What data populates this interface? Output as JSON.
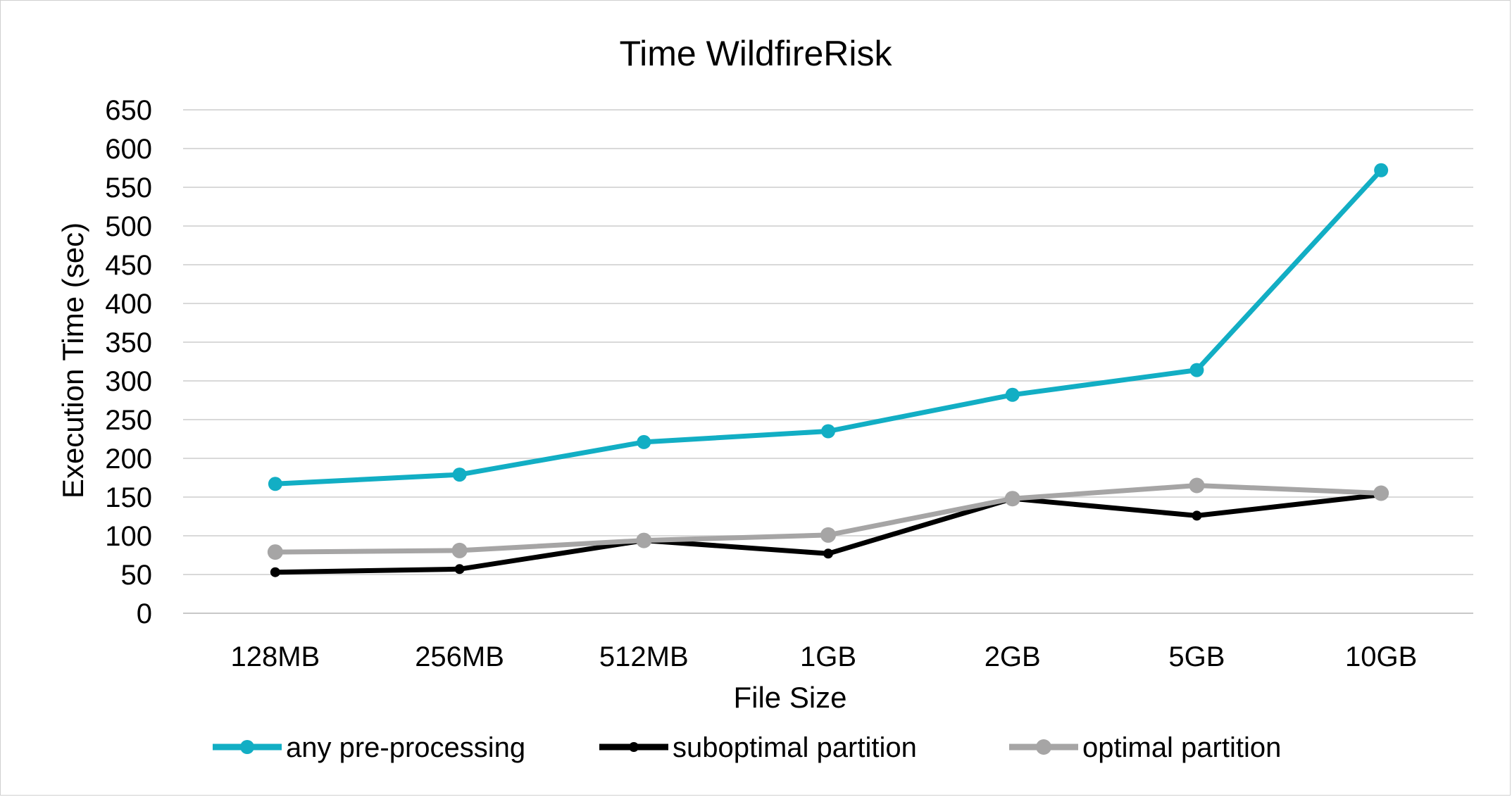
{
  "chart_data": {
    "type": "line",
    "title": "Time WildfireRisk",
    "xlabel": "File Size",
    "ylabel": "Execution Time (sec)",
    "categories": [
      "128MB",
      "256MB",
      "512MB",
      "1GB",
      "2GB",
      "5GB",
      "10GB"
    ],
    "ylim": [
      0,
      650
    ],
    "yticks": [
      0,
      50,
      100,
      150,
      200,
      250,
      300,
      350,
      400,
      450,
      500,
      550,
      600,
      650
    ],
    "grid": true,
    "legend_position": "bottom",
    "series": [
      {
        "name": "any pre-processing",
        "color": "#12AEC4",
        "values": [
          167,
          179,
          221,
          235,
          282,
          314,
          572
        ]
      },
      {
        "name": "suboptimal partition",
        "color": "#000000",
        "values": [
          53,
          57,
          94,
          77,
          148,
          126,
          153
        ]
      },
      {
        "name": "optimal partition",
        "color": "#A6A5A5",
        "values": [
          79,
          81,
          94,
          101,
          148,
          165,
          155
        ]
      }
    ]
  }
}
